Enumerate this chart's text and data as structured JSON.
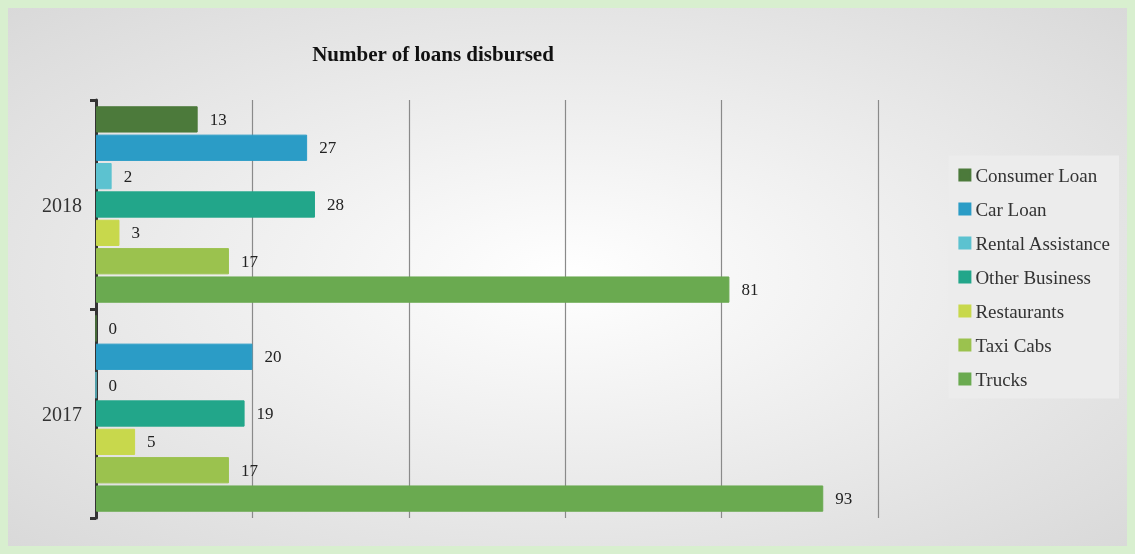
{
  "chart_data": {
    "type": "bar",
    "orientation": "horizontal",
    "title": "Number of loans disbursed",
    "categories": [
      "2018",
      "2017"
    ],
    "series": [
      {
        "name": "Consumer Loan",
        "color": "#4c7a3b",
        "values": [
          13,
          0
        ]
      },
      {
        "name": "Car Loan",
        "color": "#2b9cc6",
        "values": [
          27,
          20
        ]
      },
      {
        "name": "Rental Assistance",
        "color": "#5cc2d0",
        "values": [
          2,
          0
        ]
      },
      {
        "name": "Other Business",
        "color": "#22a68a",
        "values": [
          28,
          19
        ]
      },
      {
        "name": "Restaurants",
        "color": "#c8d84c",
        "values": [
          3,
          5
        ]
      },
      {
        "name": "Taxi Cabs",
        "color": "#9bc24e",
        "values": [
          17,
          17
        ]
      },
      {
        "name": "Trucks",
        "color": "#6aaa50",
        "values": [
          81,
          93
        ]
      }
    ],
    "xlim": [
      0,
      100
    ],
    "xticks": [
      {
        "value": 0,
        "label": null
      },
      {
        "value": 20,
        "label": null
      },
      {
        "value": 40,
        "label": null
      },
      {
        "value": 60,
        "label": null
      },
      {
        "value": 80,
        "label": null
      },
      {
        "value": 100,
        "label": null
      }
    ],
    "grid": "x",
    "legend": "right",
    "data_labels": true,
    "tick_labels": "y"
  }
}
